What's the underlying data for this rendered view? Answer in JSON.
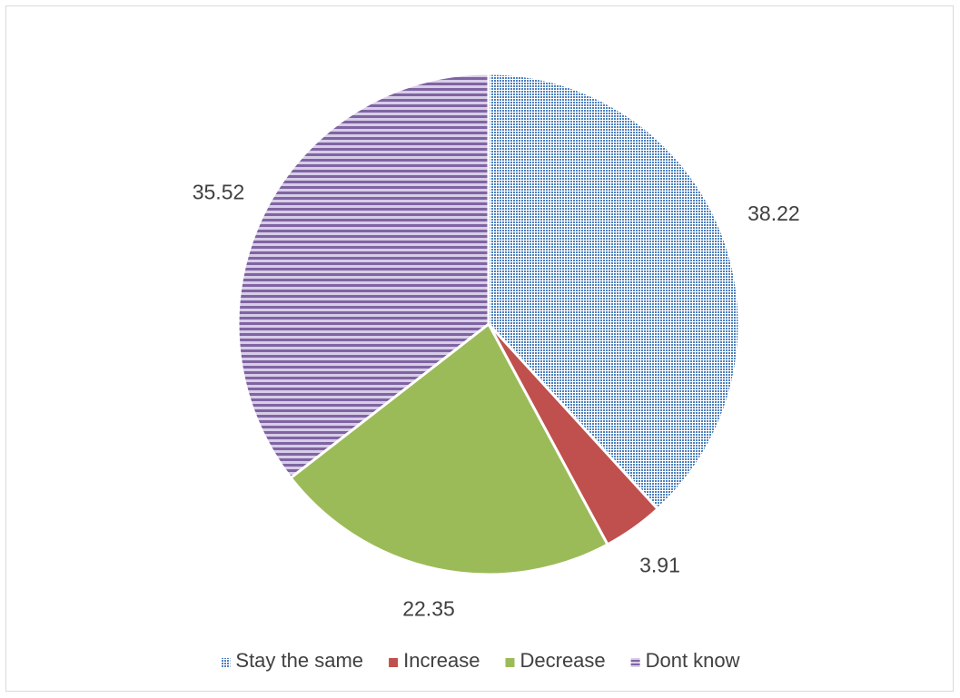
{
  "chart_data": {
    "type": "pie",
    "title": "",
    "categories": [
      "Stay the same",
      "Increase",
      "Decrease",
      "Dont know"
    ],
    "values": [
      38.22,
      3.91,
      22.35,
      35.52
    ],
    "value_labels": [
      "38.22",
      "3.91",
      "22.35",
      "35.52"
    ],
    "colors": [
      "#4f81bd",
      "#c0504d",
      "#9bbb59",
      "#8064a2"
    ],
    "patterns": [
      "dotted",
      "solid",
      "solid",
      "horizontal-stripes"
    ],
    "legend": {
      "position": "bottom",
      "entries": [
        "Stay the same",
        "Increase",
        "Decrease",
        "Dont know"
      ]
    },
    "start_angle_deg": 0,
    "direction": "clockwise"
  }
}
